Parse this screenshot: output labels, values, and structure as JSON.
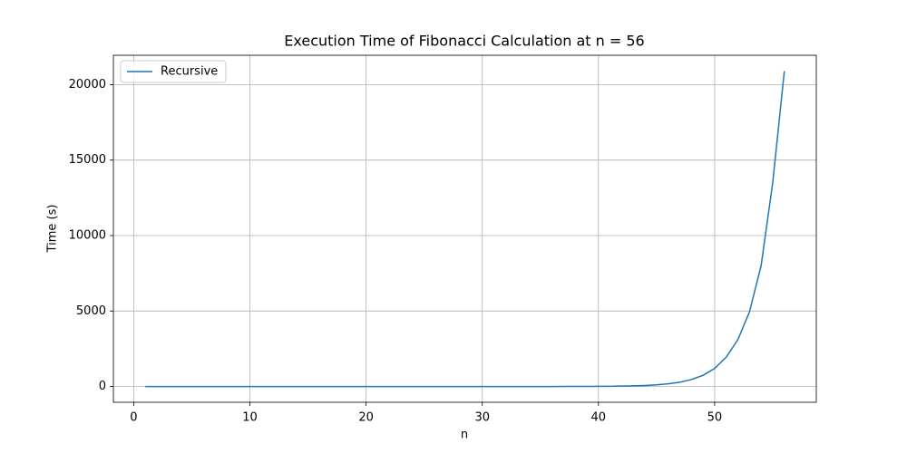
{
  "chart_data": {
    "type": "line",
    "title": "Execution Time of Fibonacci Calculation at n = 56",
    "x_label": "n",
    "y_label": "Time (s)",
    "x": [
      1,
      2,
      3,
      4,
      5,
      6,
      7,
      8,
      9,
      10,
      11,
      12,
      13,
      14,
      15,
      16,
      17,
      18,
      19,
      20,
      21,
      22,
      23,
      24,
      25,
      26,
      27,
      28,
      29,
      30,
      31,
      32,
      33,
      34,
      35,
      36,
      37,
      38,
      39,
      40,
      41,
      42,
      43,
      44,
      45,
      46,
      47,
      48,
      49,
      50,
      51,
      52,
      53,
      54,
      55,
      56
    ],
    "series": [
      {
        "name": "Recursive",
        "color": "#1f77b4",
        "values": [
          0,
          0,
          0,
          0,
          0,
          0,
          0,
          0,
          0,
          0,
          0,
          0,
          0,
          0,
          0,
          0,
          0,
          0,
          0,
          0,
          0,
          0,
          0,
          0,
          0,
          0,
          0,
          0,
          0,
          0,
          0.1,
          0.2,
          0.3,
          0.5,
          0.9,
          1.4,
          2.3,
          4,
          6,
          10,
          16,
          25,
          41,
          67,
          108,
          175,
          285,
          460,
          740,
          1200,
          1950,
          3100,
          4950,
          8000,
          13500,
          20900
        ]
      }
    ],
    "xlim": [
      -1.75,
      58.75
    ],
    "xticks": [
      0,
      10,
      20,
      30,
      40,
      50
    ],
    "ylim": [
      -1045,
      21945
    ],
    "yticks": [
      0,
      5000,
      10000,
      15000,
      20000
    ],
    "grid": true,
    "legend": "upper-left"
  }
}
